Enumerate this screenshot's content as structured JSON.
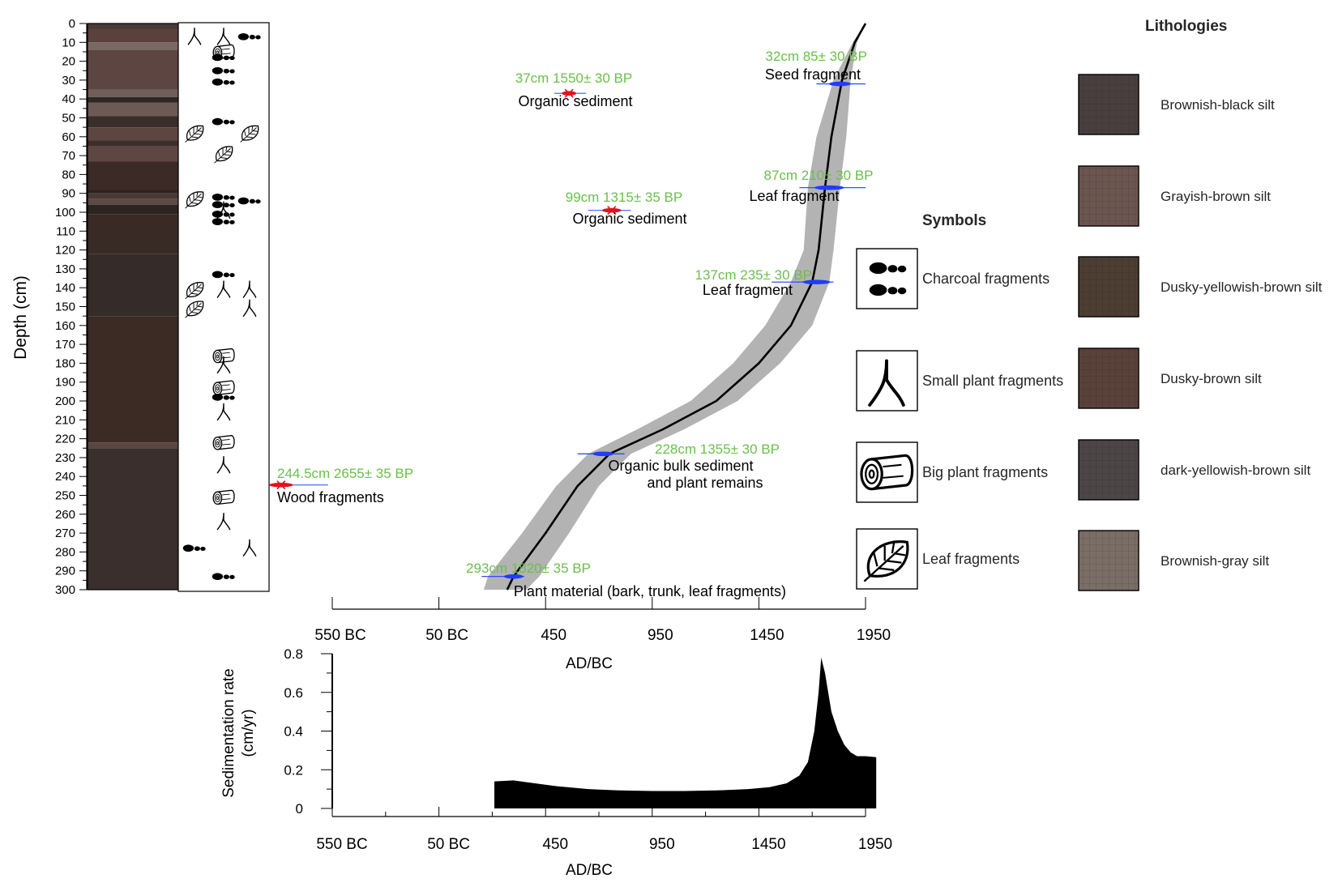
{
  "chart_data": [
    {
      "type": "table",
      "panel": "lithology-column",
      "ylabel": "Depth (cm)",
      "ylim": [
        0,
        300
      ],
      "depth_ticks": [
        0,
        10,
        20,
        30,
        40,
        50,
        60,
        70,
        80,
        90,
        100,
        110,
        120,
        130,
        140,
        150,
        160,
        170,
        180,
        190,
        200,
        210,
        220,
        230,
        240,
        250,
        260,
        270,
        280,
        290,
        300
      ],
      "layers": [
        {
          "top": 0,
          "bottom": 3,
          "color": "#4a3a37"
        },
        {
          "top": 3,
          "bottom": 10,
          "color": "#5a413c"
        },
        {
          "top": 10,
          "bottom": 14,
          "color": "#7a6864"
        },
        {
          "top": 14,
          "bottom": 35,
          "color": "#5d4541"
        },
        {
          "top": 35,
          "bottom": 39,
          "color": "#6f5e59"
        },
        {
          "top": 39,
          "bottom": 42,
          "color": "#2f2724"
        },
        {
          "top": 42,
          "bottom": 49,
          "color": "#6d5a55"
        },
        {
          "top": 49,
          "bottom": 55,
          "color": "#3a2e2b"
        },
        {
          "top": 55,
          "bottom": 62,
          "color": "#5d4540"
        },
        {
          "top": 62,
          "bottom": 65,
          "color": "#3b2e2b"
        },
        {
          "top": 65,
          "bottom": 73,
          "color": "#5e4743"
        },
        {
          "top": 73,
          "bottom": 88,
          "color": "#3b2a26"
        },
        {
          "top": 88,
          "bottom": 90,
          "color": "#2a2220"
        },
        {
          "top": 90,
          "bottom": 93,
          "color": "#4a3935"
        },
        {
          "top": 93,
          "bottom": 96,
          "color": "#5d4a45"
        },
        {
          "top": 96,
          "bottom": 101,
          "color": "#2b2421"
        },
        {
          "top": 101,
          "bottom": 122,
          "color": "#3a2a26"
        },
        {
          "top": 122,
          "bottom": 155,
          "color": "#352c2a"
        },
        {
          "top": 155,
          "bottom": 222,
          "color": "#3c2b25"
        },
        {
          "top": 222,
          "bottom": 225,
          "color": "#5a4540"
        },
        {
          "top": 225,
          "bottom": 300,
          "color": "#3a2f2c"
        }
      ],
      "symbol_marks": [
        {
          "depth": 7,
          "symbol": "small-plant",
          "col": 1
        },
        {
          "depth": 7,
          "symbol": "small-plant",
          "col": 2
        },
        {
          "depth": 7,
          "symbol": "charcoal",
          "col": 3
        },
        {
          "depth": 15,
          "symbol": "big-plant",
          "col": 2
        },
        {
          "depth": 18,
          "symbol": "charcoal",
          "col": 2
        },
        {
          "depth": 25,
          "symbol": "charcoal",
          "col": 2
        },
        {
          "depth": 31,
          "symbol": "charcoal",
          "col": 2
        },
        {
          "depth": 52,
          "symbol": "charcoal",
          "col": 2
        },
        {
          "depth": 58,
          "symbol": "leaf",
          "col": 1
        },
        {
          "depth": 58,
          "symbol": "leaf",
          "col": 3
        },
        {
          "depth": 69,
          "symbol": "leaf",
          "col": 2
        },
        {
          "depth": 93,
          "symbol": "leaf",
          "col": 1
        },
        {
          "depth": 92,
          "symbol": "charcoal",
          "col": 2
        },
        {
          "depth": 94,
          "symbol": "charcoal",
          "col": 3
        },
        {
          "depth": 96,
          "symbol": "charcoal",
          "col": 2
        },
        {
          "depth": 99,
          "symbol": "small-plant",
          "col": 2
        },
        {
          "depth": 101,
          "symbol": "charcoal",
          "col": 2
        },
        {
          "depth": 105,
          "symbol": "charcoal",
          "col": 2
        },
        {
          "depth": 133,
          "symbol": "charcoal",
          "col": 2
        },
        {
          "depth": 141,
          "symbol": "leaf",
          "col": 1
        },
        {
          "depth": 141,
          "symbol": "small-plant",
          "col": 2
        },
        {
          "depth": 141,
          "symbol": "small-plant",
          "col": 3
        },
        {
          "depth": 151,
          "symbol": "leaf",
          "col": 1
        },
        {
          "depth": 151,
          "symbol": "small-plant",
          "col": 3
        },
        {
          "depth": 176,
          "symbol": "big-plant",
          "col": 2
        },
        {
          "depth": 181,
          "symbol": "small-plant",
          "col": 2
        },
        {
          "depth": 193,
          "symbol": "big-plant",
          "col": 2
        },
        {
          "depth": 198,
          "symbol": "charcoal",
          "col": 2
        },
        {
          "depth": 206,
          "symbol": "small-plant",
          "col": 2
        },
        {
          "depth": 222,
          "symbol": "big-plant",
          "col": 2
        },
        {
          "depth": 234,
          "symbol": "small-plant",
          "col": 2
        },
        {
          "depth": 251,
          "symbol": "big-plant",
          "col": 2
        },
        {
          "depth": 264,
          "symbol": "small-plant",
          "col": 2
        },
        {
          "depth": 278,
          "symbol": "charcoal",
          "col": 1
        },
        {
          "depth": 278,
          "symbol": "small-plant",
          "col": 3
        },
        {
          "depth": 293,
          "symbol": "charcoal",
          "col": 2
        }
      ]
    },
    {
      "type": "line",
      "panel": "age-depth-model",
      "xlabel": "AD/BC",
      "x_ticks": [
        {
          "value": -550,
          "label": "550 BC"
        },
        {
          "value": -50,
          "label": "50 BC"
        },
        {
          "value": 450,
          "label": "450"
        },
        {
          "value": 950,
          "label": "950"
        },
        {
          "value": 1450,
          "label": "1450"
        },
        {
          "value": 1950,
          "label": "1950"
        }
      ],
      "xlim": [
        -550,
        1950
      ],
      "ylim": [
        0,
        300
      ],
      "series": [
        {
          "role": "median",
          "color": "#000000",
          "points": [
            [
              1950,
              0
            ],
            [
              1900,
              10
            ],
            [
              1840,
              30
            ],
            [
              1790,
              60
            ],
            [
              1760,
              87
            ],
            [
              1730,
              120
            ],
            [
              1700,
              137
            ],
            [
              1600,
              160
            ],
            [
              1450,
              180
            ],
            [
              1250,
              200
            ],
            [
              1000,
              215
            ],
            [
              750,
              228
            ],
            [
              600,
              245
            ],
            [
              450,
              270
            ],
            [
              300,
              293
            ],
            [
              270,
              300
            ]
          ]
        },
        {
          "role": "uncertainty-band",
          "color": "#b3b3b3",
          "upper": [
            [
              1950,
              0
            ],
            [
              1910,
              10
            ],
            [
              1880,
              30
            ],
            [
              1860,
              60
            ],
            [
              1830,
              87
            ],
            [
              1800,
              120
            ],
            [
              1780,
              137
            ],
            [
              1700,
              160
            ],
            [
              1550,
              180
            ],
            [
              1350,
              200
            ],
            [
              1100,
              215
            ],
            [
              850,
              228
            ],
            [
              700,
              245
            ],
            [
              560,
              270
            ],
            [
              420,
              293
            ],
            [
              360,
              300
            ]
          ],
          "lower": [
            [
              1950,
              0
            ],
            [
              1890,
              10
            ],
            [
              1800,
              30
            ],
            [
              1720,
              60
            ],
            [
              1680,
              87
            ],
            [
              1660,
              120
            ],
            [
              1600,
              137
            ],
            [
              1480,
              160
            ],
            [
              1330,
              180
            ],
            [
              1130,
              200
            ],
            [
              880,
              215
            ],
            [
              650,
              228
            ],
            [
              500,
              245
            ],
            [
              340,
              270
            ],
            [
              180,
              293
            ],
            [
              160,
              300
            ]
          ]
        }
      ],
      "dates": [
        {
          "label": "32cm 85± 30 BP",
          "material": "Seed fragment",
          "depth": 32,
          "x": 1830,
          "min": 1720,
          "max": 1950,
          "color": "#6abf4b",
          "range_color": "#1f3cff",
          "outlier": false
        },
        {
          "label": "37cm 1550± 30 BP",
          "material": "Organic sediment",
          "depth": 37,
          "x": 560,
          "min": 490,
          "max": 640,
          "color": "#6abf4b",
          "range_color": "#e0141c",
          "outlier": true
        },
        {
          "label": "87cm 210± 30 BP",
          "material": "Leaf fragment",
          "depth": 87,
          "x": 1780,
          "min": 1640,
          "max": 1950,
          "color": "#6abf4b",
          "range_color": "#1f3cff",
          "outlier": false
        },
        {
          "label": "99cm 1315± 35 BP",
          "material": "Organic sediment",
          "depth": 99,
          "x": 760,
          "min": 650,
          "max": 850,
          "color": "#6abf4b",
          "range_color": "#e0141c",
          "outlier": true
        },
        {
          "label": "137cm 235± 30 BP",
          "material": "Leaf fragment",
          "depth": 137,
          "x": 1720,
          "min": 1510,
          "max": 1800,
          "color": "#6abf4b",
          "range_color": "#1f3cff",
          "outlier": false
        },
        {
          "label": "228cm 1355± 30 BP",
          "material": "Organic bulk sediment\nand plant remains",
          "depth": 228,
          "x": 720,
          "min": 600,
          "max": 820,
          "color": "#6abf4b",
          "range_color": "#1f3cff",
          "outlier": false
        },
        {
          "label": "244.5cm 2655± 35 BP",
          "material": "Wood fragments",
          "depth": 244.5,
          "x": -790,
          "min": -820,
          "max": -570,
          "color": "#6abf4b",
          "range_color": "#e0141c",
          "outlier": true
        },
        {
          "label": "293cm 1820± 35 BP",
          "material": "Plant material (bark, trunk, leaf fragments)",
          "depth": 293,
          "x": 300,
          "min": 150,
          "max": 350,
          "color": "#6abf4b",
          "range_color": "#1f3cff",
          "outlier": false
        }
      ]
    },
    {
      "type": "area",
      "panel": "sedimentation-rate",
      "xlabel": "AD/BC",
      "ylabel": "Sedimentation rate\n(cm/yr)",
      "xlim": [
        -550,
        1950
      ],
      "ylim": [
        0,
        0.8
      ],
      "y_ticks": [
        {
          "value": 0,
          "label": "0"
        },
        {
          "value": 0.2,
          "label": "0.2"
        },
        {
          "value": 0.4,
          "label": "0.4"
        },
        {
          "value": 0.6,
          "label": "0.6"
        },
        {
          "value": 0.8,
          "label": "0.8"
        }
      ],
      "x_ticks": [
        {
          "value": -550,
          "label": "550 BC"
        },
        {
          "value": -50,
          "label": "50 BC"
        },
        {
          "value": 450,
          "label": "450"
        },
        {
          "value": 950,
          "label": "950"
        },
        {
          "value": 1450,
          "label": "1450"
        },
        {
          "value": 1950,
          "label": "1950"
        }
      ],
      "fill_color": "#000000",
      "values": [
        [
          210,
          0
        ],
        [
          210,
          0.14
        ],
        [
          300,
          0.145
        ],
        [
          400,
          0.13
        ],
        [
          500,
          0.115
        ],
        [
          650,
          0.1
        ],
        [
          800,
          0.093
        ],
        [
          950,
          0.09
        ],
        [
          1100,
          0.09
        ],
        [
          1250,
          0.093
        ],
        [
          1400,
          0.1
        ],
        [
          1500,
          0.11
        ],
        [
          1580,
          0.13
        ],
        [
          1640,
          0.17
        ],
        [
          1680,
          0.24
        ],
        [
          1710,
          0.4
        ],
        [
          1730,
          0.6
        ],
        [
          1742,
          0.78
        ],
        [
          1760,
          0.7
        ],
        [
          1790,
          0.5
        ],
        [
          1820,
          0.4
        ],
        [
          1850,
          0.33
        ],
        [
          1880,
          0.29
        ],
        [
          1910,
          0.27
        ],
        [
          1950,
          0.27
        ],
        [
          2000,
          0.265
        ],
        [
          2000,
          0
        ]
      ]
    }
  ],
  "legend": {
    "symbols_title": "Symbols",
    "symbols": [
      {
        "key": "charcoal",
        "label": "Charcoal fragments",
        "icon": "charcoal-icon"
      },
      {
        "key": "small-plant",
        "label": "Small plant fragments",
        "icon": "small-plant-icon"
      },
      {
        "key": "big-plant",
        "label": "Big plant fragments",
        "icon": "log-icon"
      },
      {
        "key": "leaf",
        "label": "Leaf fragments",
        "icon": "leaf-icon"
      }
    ],
    "lithologies_title": "Lithologies",
    "lithologies": [
      {
        "label": "Brownish-black silt",
        "color": "#4a3f3f"
      },
      {
        "label": "Grayish-brown silt",
        "color": "#6b5650"
      },
      {
        "label": "Dusky-yellowish-brown silt",
        "color": "#4d3e33"
      },
      {
        "label": "Dusky-brown silt",
        "color": "#5a423b"
      },
      {
        "label": "dark-yellowish-brown silt",
        "color": "#4c4746"
      },
      {
        "label": "Brownish-gray silt",
        "color": "#7a6e66"
      }
    ]
  }
}
